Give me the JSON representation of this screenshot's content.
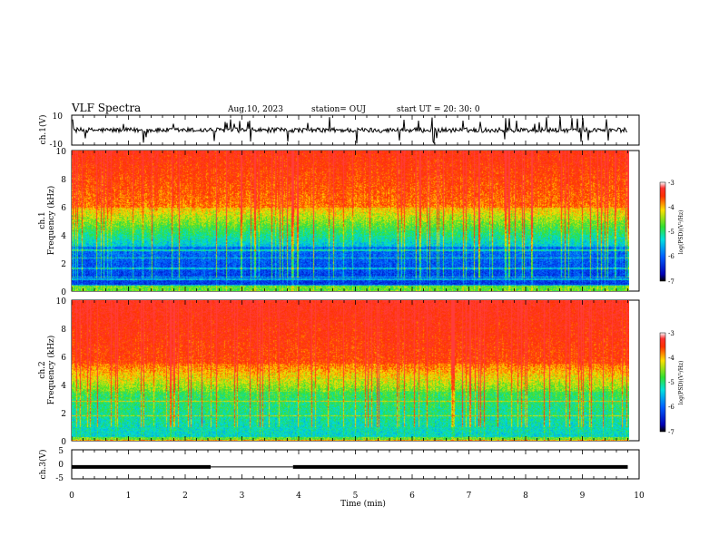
{
  "header": {
    "title": "VLF Spectra",
    "date": "Aug.10, 2023",
    "station": "station= OUJ",
    "start_ut": "start  UT  =   20: 30: 0"
  },
  "chart_data": [
    {
      "type": "line",
      "panel": "waveform-ch1",
      "ylabel": "ch.1(V)",
      "ylim": [
        -10,
        10
      ],
      "yticks": [
        "10",
        "-10"
      ],
      "xlim": [
        0,
        10
      ],
      "description_values": {
        "baseline": 0,
        "color": "#000000"
      }
    },
    {
      "type": "heatmap",
      "panel": "spectrogram-ch1",
      "ylabel_lines": [
        "ch.1",
        "Frequency (kHz)"
      ],
      "ylim": [
        0,
        10
      ],
      "yticks": [
        "0",
        "2",
        "4",
        "6",
        "8",
        "10"
      ],
      "xlim": [
        0,
        10
      ],
      "data_extent_min": 9.8,
      "colorbar": {
        "label": "log(PSD)(V²/Hz)",
        "range": [
          -7,
          -3
        ],
        "ticks": [
          "-3",
          "-4",
          "-5",
          "-6",
          "-7"
        ]
      }
    },
    {
      "type": "heatmap",
      "panel": "spectrogram-ch2",
      "ylabel_lines": [
        "ch.2",
        "Frequency (kHz)"
      ],
      "ylim": [
        0,
        10
      ],
      "yticks": [
        "0",
        "2",
        "4",
        "6",
        "8",
        "10"
      ],
      "xlim": [
        0,
        10
      ],
      "data_extent_min": 9.8,
      "colorbar": {
        "label": "log(PSD)(V²/Hz)",
        "range": [
          -7,
          -3
        ],
        "ticks": [
          "-3",
          "-4",
          "-5",
          "-6",
          "-7"
        ]
      }
    },
    {
      "type": "line",
      "panel": "waveform-ch3",
      "ylabel": "ch.3(V)",
      "ylim": [
        -5,
        5
      ],
      "yticks": [
        "5",
        "0",
        "-5"
      ],
      "xlim": [
        0,
        10
      ],
      "segments": [
        {
          "x": [
            0,
            2.45
          ],
          "y": -0.9,
          "width": "thick"
        },
        {
          "x": [
            2.45,
            3.9
          ],
          "y": -0.9,
          "width": "thin"
        },
        {
          "x": [
            3.9,
            9.8
          ],
          "y": -0.9,
          "width": "thick"
        }
      ]
    }
  ],
  "xaxis": {
    "label": "Time (min)",
    "ticks": [
      "0",
      "1",
      "2",
      "3",
      "4",
      "5",
      "6",
      "7",
      "8",
      "9",
      "10"
    ]
  },
  "colors": {
    "high": "#ff2a00",
    "mid_high": "#ffd200",
    "mid": "#40e040",
    "mid_low": "#00e0e0",
    "low": "#0000c8"
  }
}
